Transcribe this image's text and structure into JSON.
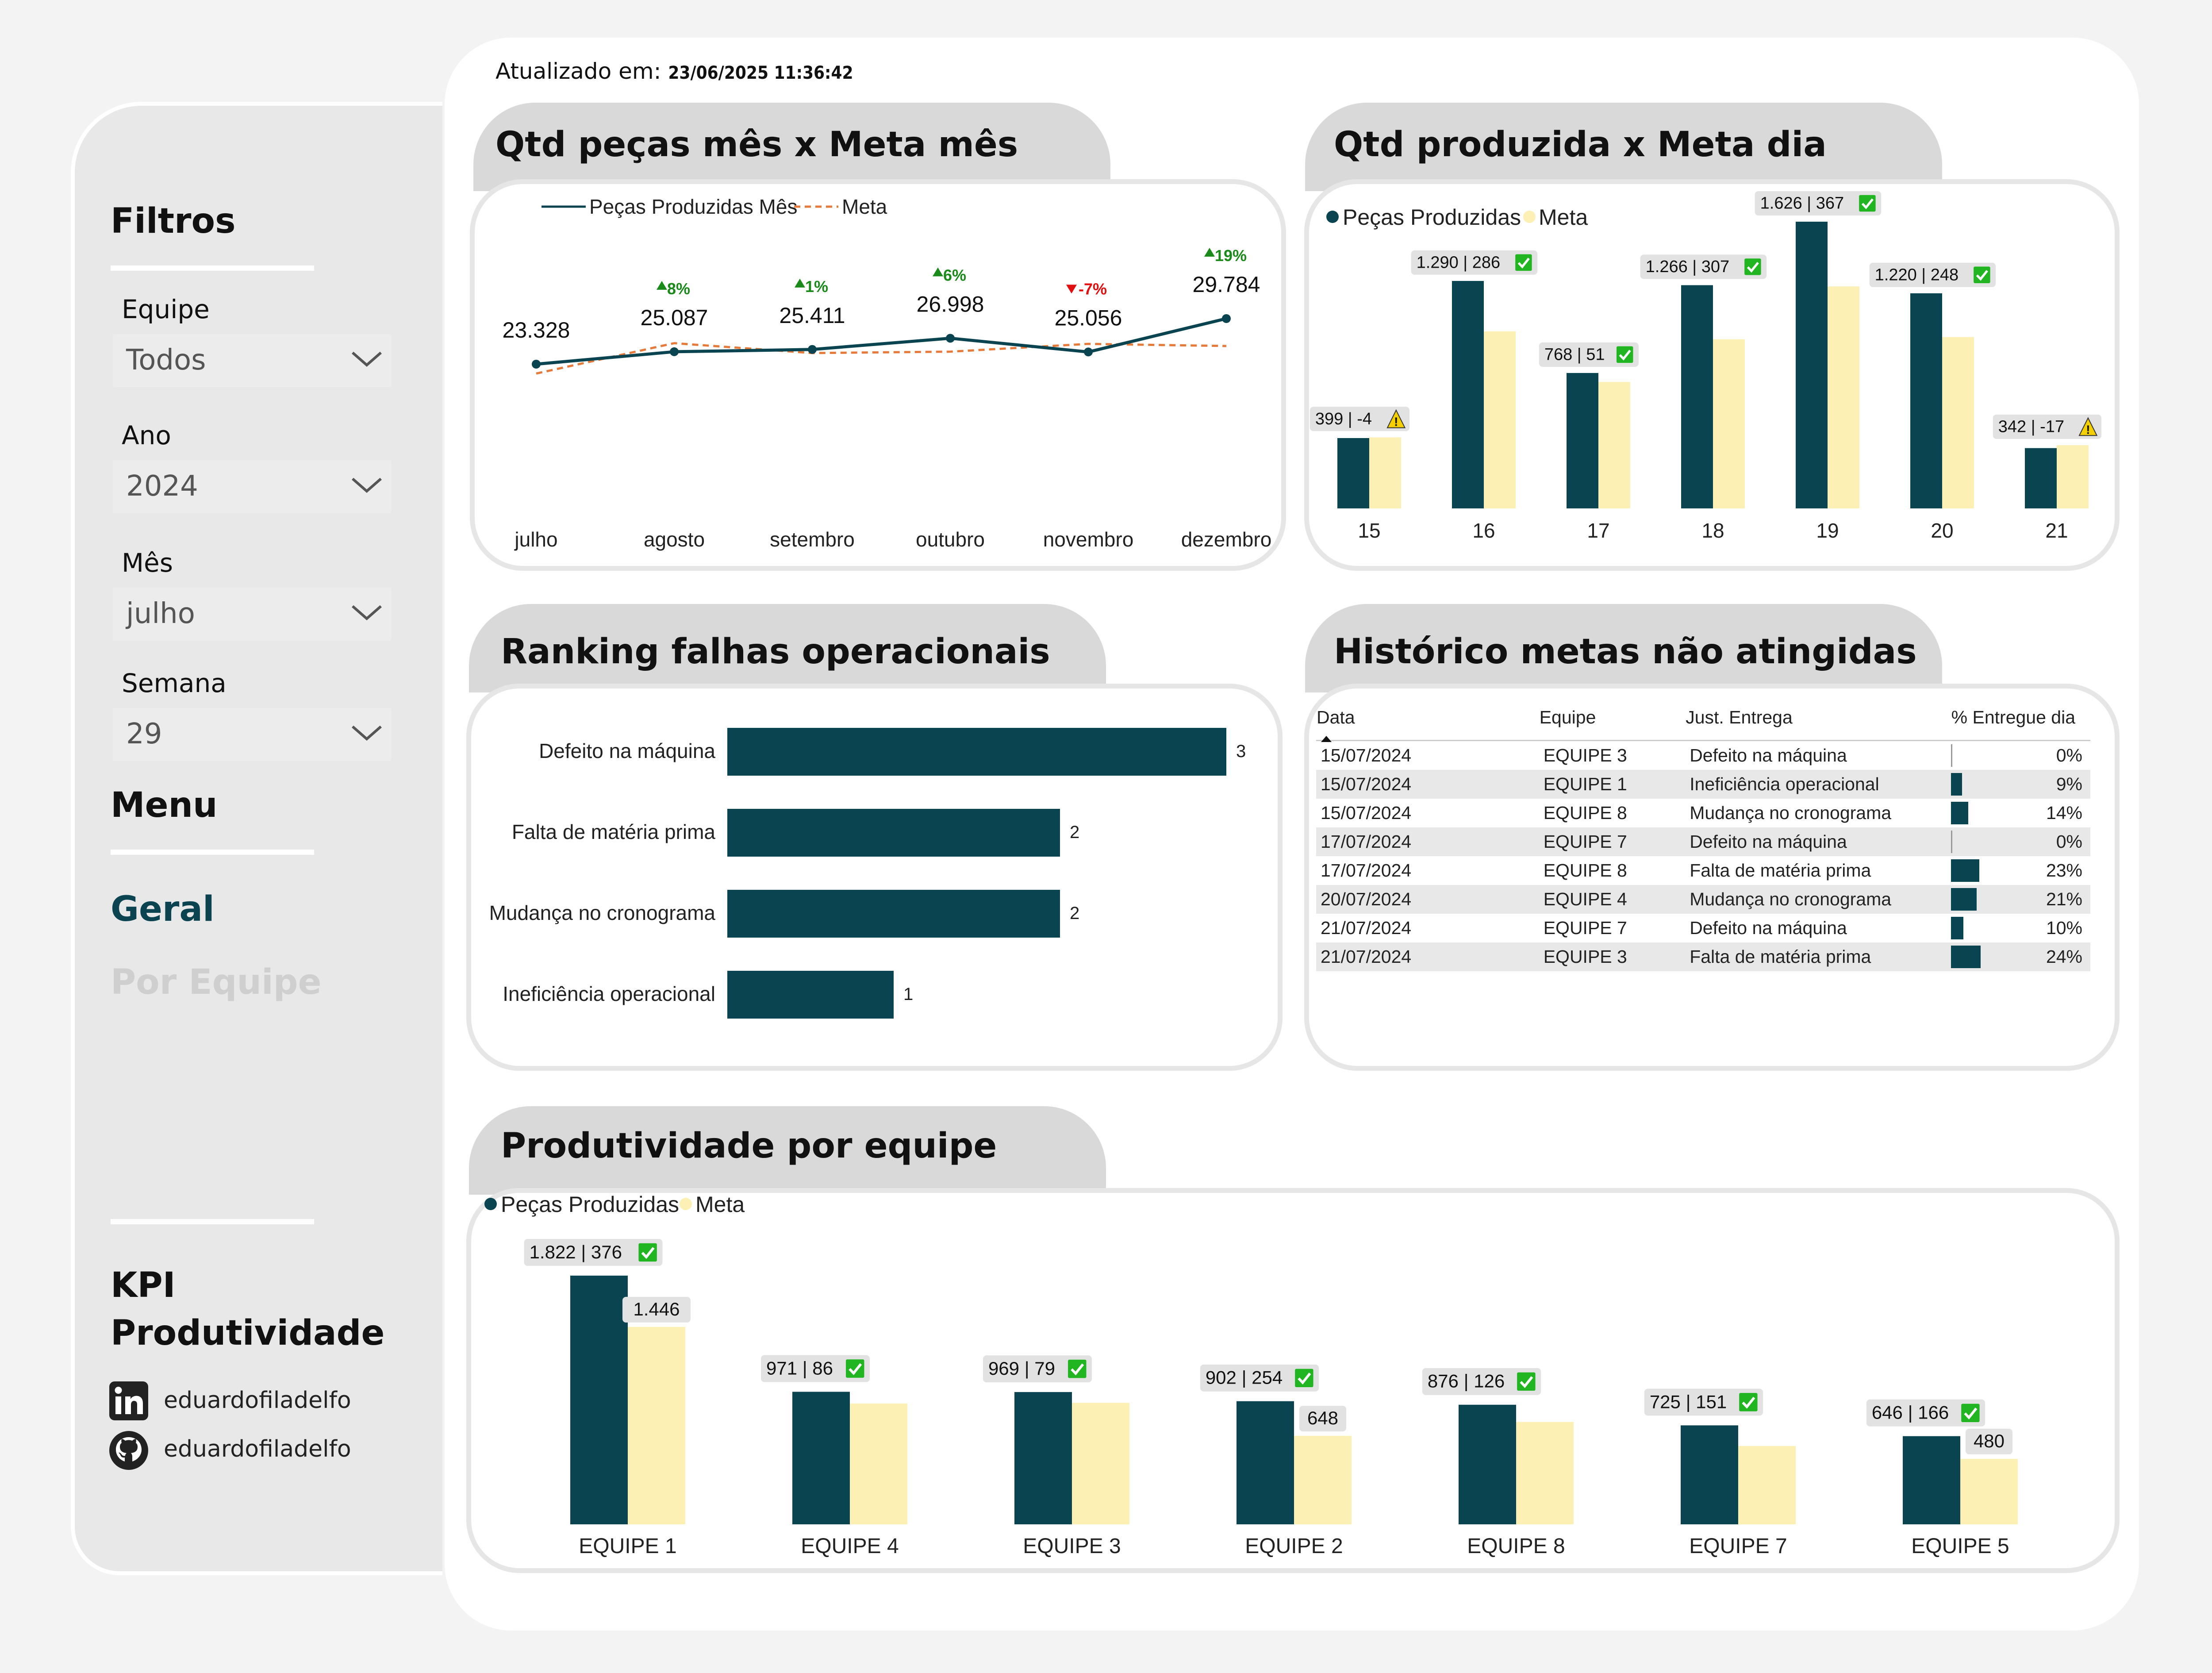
{
  "updated": {
    "label": "Atualizado em:",
    "value": "23/06/2025 11:36:42"
  },
  "sidebar": {
    "filters_title": "Filtros",
    "filters": [
      {
        "label": "Equipe",
        "value": "Todos"
      },
      {
        "label": "Ano",
        "value": "2024"
      },
      {
        "label": "Mês",
        "value": "julho"
      },
      {
        "label": "Semana",
        "value": "29"
      }
    ],
    "menu_title": "Menu",
    "menu": [
      {
        "label": "Geral",
        "active": true
      },
      {
        "label": "Por Equipe",
        "active": false
      }
    ],
    "kpi_title_1": "KPI",
    "kpi_title_2": "Produtividade",
    "social": [
      {
        "icon": "linkedin-icon",
        "handle": "eduardofiladelfo"
      },
      {
        "icon": "github-icon",
        "handle": "eduardofiladelfo"
      }
    ]
  },
  "colors": {
    "dark": "#0a4450",
    "meta": "#fdf0b4",
    "meta_line": "#e67a3a",
    "up": "#1a8a1a",
    "down": "#e01010",
    "check": "#22b522",
    "warn": "#f5d000"
  },
  "chart_data": [
    {
      "id": "monthly",
      "type": "line",
      "title": "Qtd peças mês x Meta mês",
      "categories": [
        "julho",
        "agosto",
        "setembro",
        "outubro",
        "novembro",
        "dezembro"
      ],
      "series": [
        {
          "name": "Peças Produzidas Mês",
          "values": [
            23328,
            25087,
            25411,
            26998,
            25056,
            29784
          ],
          "labels": [
            "23.328",
            "25.087",
            "25.411",
            "26.998",
            "25.056",
            "29.784"
          ]
        },
        {
          "name": "Meta",
          "values": [
            22000,
            26300,
            24900,
            25100,
            26200,
            25900
          ]
        }
      ],
      "variation": [
        "",
        "8%",
        "1%",
        "6%",
        "-7%",
        "19%"
      ],
      "legend": "top-left"
    },
    {
      "id": "daily",
      "type": "bar",
      "title": "Qtd produzida x Meta dia",
      "categories": [
        "15",
        "16",
        "17",
        "18",
        "19",
        "20",
        "21"
      ],
      "series": [
        {
          "name": "Peças Produzidas",
          "values": [
            399,
            1290,
            768,
            1266,
            1626,
            1220,
            342
          ]
        },
        {
          "name": "Meta",
          "values": [
            403,
            1004,
            717,
            959,
            1259,
            972,
            359
          ]
        }
      ],
      "bar_labels": [
        "399 | -4",
        "1.290 | 286",
        "768 | 51",
        "1.266 | 307",
        "1.626 | 367",
        "1.220 | 248",
        "342 | -17"
      ],
      "status": [
        "warn",
        "ok",
        "ok",
        "ok",
        "ok",
        "ok",
        "warn"
      ],
      "legend": "top-left"
    },
    {
      "id": "ranking",
      "type": "bar",
      "orientation": "horizontal",
      "title": "Ranking falhas operacionais",
      "categories": [
        "Defeito na máquina",
        "Falta de matéria prima",
        "Mudança no cronograma",
        "Ineficiência operacional"
      ],
      "values": [
        3,
        2,
        2,
        1
      ],
      "labels": [
        "3",
        "2",
        "2",
        "1"
      ]
    },
    {
      "id": "history",
      "type": "table",
      "title": "Histórico metas não atingidas",
      "columns": [
        "Data",
        "Equipe",
        "Just. Entrega",
        "% Entregue dia"
      ],
      "rows": [
        [
          "15/07/2024",
          "EQUIPE 3",
          "Defeito na máquina",
          "0%"
        ],
        [
          "15/07/2024",
          "EQUIPE 1",
          "Ineficiência operacional",
          "9%"
        ],
        [
          "15/07/2024",
          "EQUIPE 8",
          "Mudança no cronograma",
          "14%"
        ],
        [
          "17/07/2024",
          "EQUIPE 7",
          "Defeito na máquina",
          "0%"
        ],
        [
          "17/07/2024",
          "EQUIPE 8",
          "Falta de matéria prima",
          "23%"
        ],
        [
          "20/07/2024",
          "EQUIPE 4",
          "Mudança no cronograma",
          "21%"
        ],
        [
          "21/07/2024",
          "EQUIPE 7",
          "Defeito na máquina",
          "10%"
        ],
        [
          "21/07/2024",
          "EQUIPE 3",
          "Falta de matéria prima",
          "24%"
        ]
      ],
      "pct_values": [
        0,
        9,
        14,
        0,
        23,
        21,
        10,
        24
      ]
    },
    {
      "id": "teams",
      "type": "bar",
      "title": "Produtividade por equipe",
      "categories": [
        "EQUIPE 1",
        "EQUIPE 4",
        "EQUIPE 3",
        "EQUIPE 2",
        "EQUIPE 8",
        "EQUIPE 7",
        "EQUIPE 5"
      ],
      "series": [
        {
          "name": "Peças Produzidas",
          "values": [
            1822,
            971,
            969,
            902,
            876,
            725,
            646
          ]
        },
        {
          "name": "Meta",
          "values": [
            1446,
            885,
            890,
            648,
            750,
            574,
            480
          ]
        }
      ],
      "bar_labels": [
        "1.822 | 376",
        "971 | 86",
        "969 | 79",
        "902 | 254",
        "876 | 126",
        "725 | 151",
        "646 | 166"
      ],
      "meta_labels": [
        "1.446",
        "",
        "",
        "648",
        "",
        "",
        "480"
      ],
      "status": [
        "ok",
        "ok",
        "ok",
        "ok",
        "ok",
        "ok",
        "ok"
      ],
      "legend": "top-left"
    }
  ]
}
